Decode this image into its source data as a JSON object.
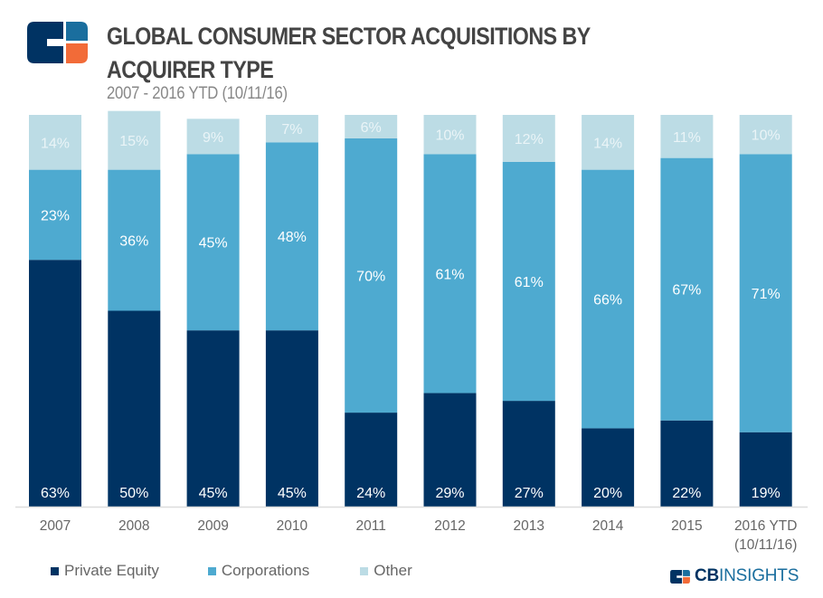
{
  "header": {
    "title_line1": "GLOBAL CONSUMER SECTOR ACQUISITIONS BY",
    "title_line2": "ACQUIRER TYPE",
    "subtitle": "2007 - 2016 YTD (10/11/16)",
    "logo_icon": "cb-insights-logo-icon"
  },
  "colors": {
    "private_equity": "#003363",
    "corporations": "#4eaad0",
    "other": "#bcdce5",
    "logo_navy": "#003363",
    "logo_blue": "#1a6e9e",
    "logo_orange": "#f26b38"
  },
  "chart_data": {
    "type": "bar",
    "stacked": true,
    "normalized_percent": true,
    "title": "GLOBAL CONSUMER SECTOR ACQUISITIONS BY ACQUIRER TYPE",
    "subtitle": "2007 - 2016 YTD (10/11/16)",
    "xlabel": "",
    "ylabel": "",
    "ylim": [
      0,
      100
    ],
    "grid": false,
    "legend_position": "bottom-left",
    "categories": [
      "2007",
      "2008",
      "2009",
      "2010",
      "2011",
      "2012",
      "2013",
      "2014",
      "2015",
      "2016 YTD (10/11/16)"
    ],
    "category_lines": [
      [
        "2007"
      ],
      [
        "2008"
      ],
      [
        "2009"
      ],
      [
        "2010"
      ],
      [
        "2011"
      ],
      [
        "2012"
      ],
      [
        "2013"
      ],
      [
        "2014"
      ],
      [
        "2015"
      ],
      [
        "2016 YTD",
        "(10/11/16)"
      ]
    ],
    "series": [
      {
        "name": "Private Equity",
        "key": "private_equity",
        "values": [
          63,
          50,
          45,
          45,
          24,
          29,
          27,
          20,
          22,
          19
        ]
      },
      {
        "name": "Corporations",
        "key": "corporations",
        "values": [
          23,
          36,
          45,
          48,
          70,
          61,
          61,
          66,
          67,
          71
        ]
      },
      {
        "name": "Other",
        "key": "other",
        "values": [
          14,
          15,
          9,
          7,
          6,
          10,
          12,
          14,
          11,
          10
        ]
      }
    ],
    "value_suffix": "%"
  },
  "legend": {
    "items": [
      {
        "label": "Private Equity",
        "key": "private_equity"
      },
      {
        "label": "Corporations",
        "key": "corporations"
      },
      {
        "label": "Other",
        "key": "other"
      }
    ]
  },
  "footer": {
    "brand_bold": "CB",
    "brand_light": "INSIGHTS"
  }
}
